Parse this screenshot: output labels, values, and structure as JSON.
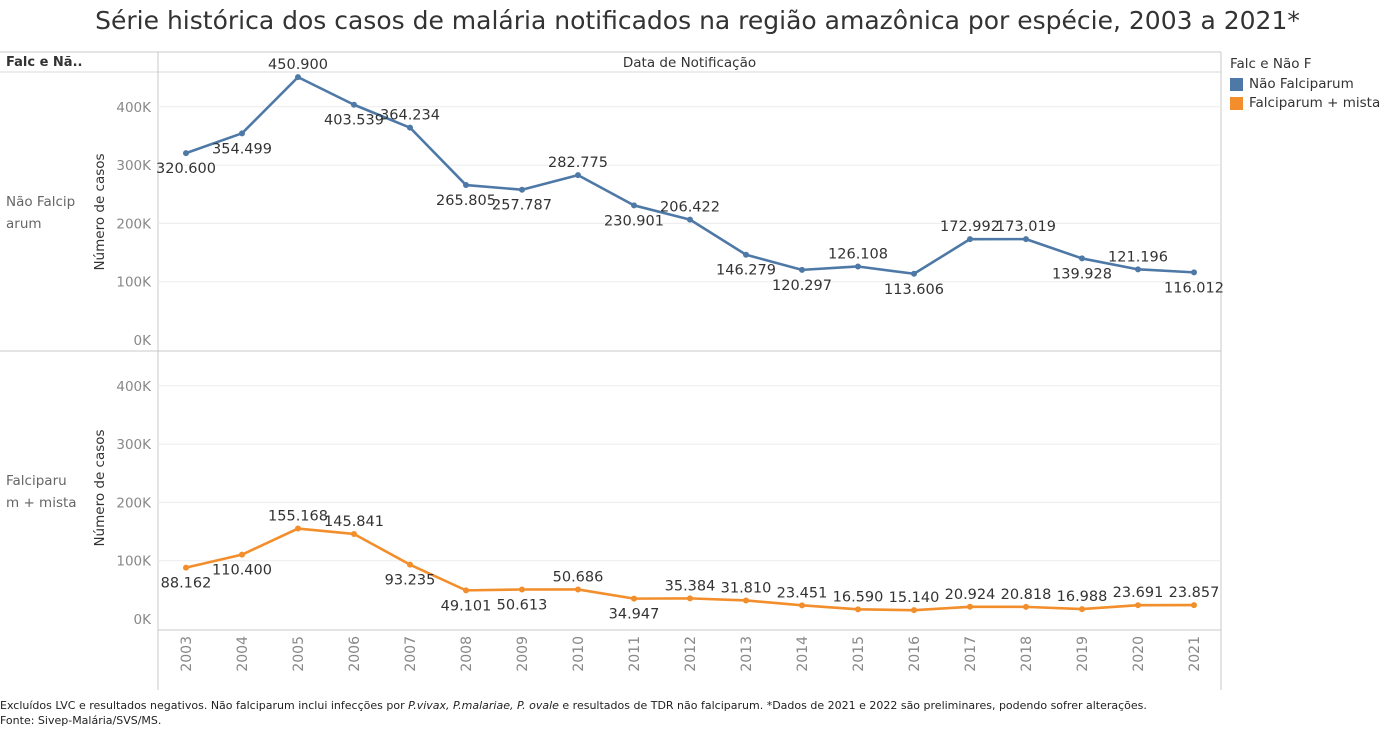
{
  "title": "Série histórica dos casos de malária notificados na região amazônica por espécie, 2003 a 2021*",
  "row_field_header": "Falc e Nã..",
  "column_header": "Data de Notificação",
  "legend": {
    "title": "Falc e Não F",
    "items": [
      {
        "label": "Não Falciparum",
        "color": "#4e79a7"
      },
      {
        "label": "Falciparum + mista",
        "color": "#f28e2b"
      }
    ]
  },
  "footnote": {
    "part1": "Excluídos LVC e resultados negativos. Não falciparum inclui infecções por ",
    "species": "P.vivax, P.malariae, P. ovale",
    "part2": " e resultados de TDR não falciparum. *Dados de 2021 e 2022 são preliminares, podendo sofrer alterações. Fonte: Sivep-Malária/SVS/MS."
  },
  "chart_data": {
    "type": "line",
    "x": [
      "2003",
      "2004",
      "2005",
      "2006",
      "2007",
      "2008",
      "2009",
      "2010",
      "2011",
      "2012",
      "2013",
      "2014",
      "2015",
      "2016",
      "2017",
      "2018",
      "2019",
      "2020",
      "2021"
    ],
    "ylabel": "Número de casos",
    "ylim": [
      0,
      470000
    ],
    "yticks": [
      0,
      100000,
      200000,
      300000,
      400000
    ],
    "ytick_labels": [
      "0K",
      "100K",
      "200K",
      "300K",
      "400K"
    ],
    "grid": true,
    "legend_position": "right",
    "panels": [
      {
        "row_label": "Não Falciparum",
        "color": "#4e79a7",
        "values": [
          320600,
          354499,
          450900,
          403539,
          364234,
          265805,
          257787,
          282775,
          230901,
          206422,
          146279,
          120297,
          126108,
          113606,
          172992,
          173019,
          139928,
          121196,
          116012
        ],
        "labels": [
          "320.600",
          "354.499",
          "450.900",
          "403.539",
          "364.234",
          "265.805",
          "257.787",
          "282.775",
          "230.901",
          "206.422",
          "146.279",
          "120.297",
          "126.108",
          "113.606",
          "172.992",
          "173.019",
          "139.928",
          "121.196",
          "116.012"
        ]
      },
      {
        "row_label": "Falciparum + mista",
        "color": "#f28e2b",
        "values": [
          88162,
          110400,
          155168,
          145841,
          93235,
          49101,
          50613,
          50686,
          34947,
          35384,
          31810,
          23451,
          16590,
          15140,
          20924,
          20818,
          16988,
          23691,
          23857
        ],
        "labels": [
          "88.162",
          "110.400",
          "155.168",
          "145.841",
          "93.235",
          "49.101",
          "50.613",
          "50.686",
          "34.947",
          "35.384",
          "31.810",
          "23.451",
          "16.590",
          "15.140",
          "20.924",
          "20.818",
          "16.988",
          "23.691",
          "23.857"
        ]
      }
    ]
  }
}
